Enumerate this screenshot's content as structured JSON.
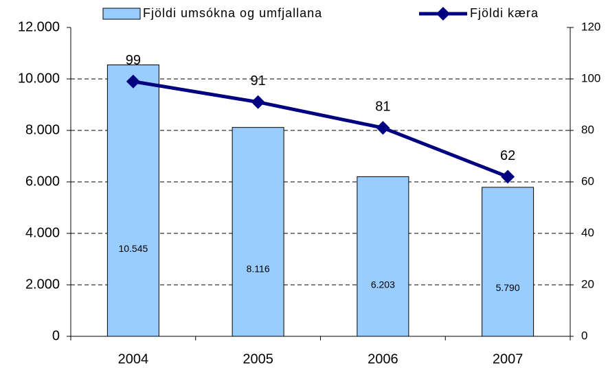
{
  "chart_data": {
    "type": "bar",
    "categories": [
      "2004",
      "2005",
      "2006",
      "2007"
    ],
    "series": [
      {
        "name": "Fjöldi umsókna og umfjallana",
        "color": "#99ccff",
        "values": [
          10545,
          8116,
          6203,
          5790
        ],
        "value_labels": [
          "10.545",
          "8.116",
          "6.203",
          "5.790"
        ]
      },
      {
        "name": "Fjöldi kæra",
        "color": "#000080",
        "type": "line",
        "axis": "y2",
        "values": [
          99,
          91,
          81,
          62
        ]
      }
    ],
    "ylim": [
      0,
      12000
    ],
    "yticks": [
      0,
      {
        "value": 2000,
        "label": "2.000"
      },
      {
        "value": 4000,
        "label": "4.000"
      },
      {
        "value": 6000,
        "label": "6.000"
      },
      {
        "value": 8000,
        "label": "8.000"
      },
      {
        "value": 10000,
        "label": "10.000"
      },
      {
        "value": 12000,
        "label": "12.000"
      }
    ],
    "y2lim": [
      0,
      120
    ],
    "y2ticks": [
      0,
      20,
      40,
      60,
      80,
      100,
      120
    ],
    "grid": true
  }
}
